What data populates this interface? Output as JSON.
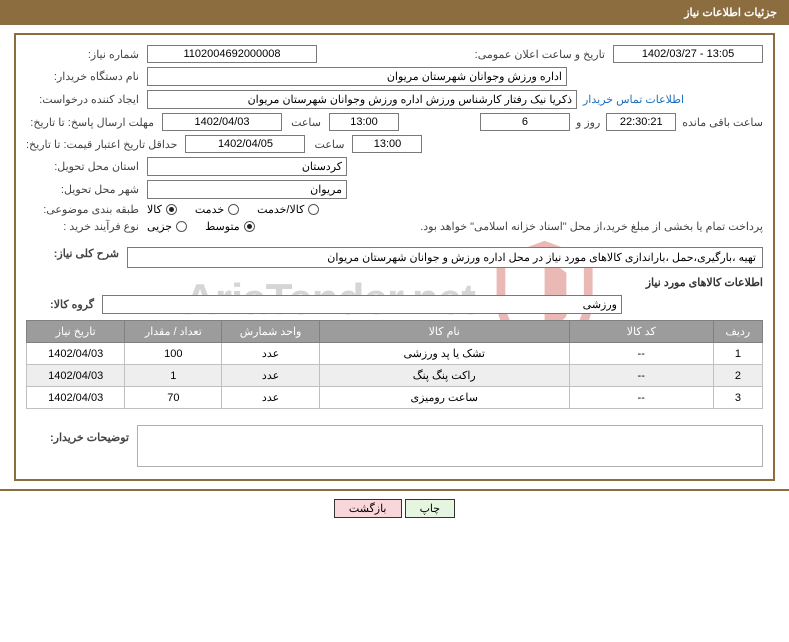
{
  "header": {
    "title": "جزئیات اطلاعات نیاز"
  },
  "labels": {
    "need_no": "شماره نیاز:",
    "announce": "تاریخ و ساعت اعلان عمومی:",
    "buyer": "نام دستگاه خریدار:",
    "requester": "ایجاد کننده درخواست:",
    "respond_until": "مهلت ارسال پاسخ: تا تاریخ:",
    "time": "ساعت",
    "days_and": "روز و",
    "remaining": "ساعت باقی مانده",
    "valid_until": "حداقل تاریخ اعتبار قیمت: تا تاریخ:",
    "province": "استان محل تحویل:",
    "city": "شهر محل تحویل:",
    "category": "طبقه بندی موضوعی:",
    "process": "نوع فرآیند خرید :",
    "buyer_contact": "اطلاعات تماس خریدار",
    "overall": "شرح کلی نیاز:",
    "items_section": "اطلاعات کالاهای مورد نیاز",
    "group": "گروه کالا:",
    "remarks": "توضیحات خریدار:",
    "print": "چاپ",
    "back": "بازگشت"
  },
  "values": {
    "need_no": "1102004692000008",
    "announce": "13:05 - 1402/03/27",
    "buyer": "اداره ورزش وجوانان شهرستان مریوان",
    "requester": "ذکریا نیک رفتار کارشناس ورزش اداره ورزش وجوانان شهرستان مریوان",
    "respond_date": "1402/04/03",
    "respond_time": "13:00",
    "days_left": "6",
    "countdown": "22:30:21",
    "valid_date": "1402/04/05",
    "valid_time": "13:00",
    "province": "کردستان",
    "city": "مریوان",
    "overall": "تهیه ،بارگیری،حمل ،باراندازی کالاهای مورد نیاز در محل اداره ورزش و جوانان شهرستان مریوان",
    "group": "ورزشی",
    "pay_note": "پرداخت تمام یا بخشی از مبلغ خرید،از محل \"اسناد خزانه اسلامی\" خواهد بود."
  },
  "category_opts": {
    "o1": "کالا",
    "o2": "خدمت",
    "o3": "کالا/خدمت"
  },
  "process_opts": {
    "o1": "جزیی",
    "o2": "متوسط"
  },
  "radio_state": {
    "category_selected": "o1",
    "process_selected": "o2"
  },
  "table": {
    "headers": {
      "row": "ردیف",
      "code": "کد کالا",
      "name": "نام کالا",
      "unit": "واحد شمارش",
      "qty": "تعداد / مقدار",
      "date": "تاریخ نیاز"
    },
    "td": {
      "r1c1": "1",
      "r1c2": "--",
      "r1c3": "تشک یا پد ورزشی",
      "r1c4": "عدد",
      "r1c5": "100",
      "r1c6": "1402/04/03",
      "r2c1": "2",
      "r2c2": "--",
      "r2c3": "راکت پنگ پنگ",
      "r2c4": "عدد",
      "r2c5": "1",
      "r2c6": "1402/04/03",
      "r3c1": "3",
      "r3c2": "--",
      "r3c3": "ساعت رومیزی",
      "r3c4": "عدد",
      "r3c5": "70",
      "r3c6": "1402/04/03"
    },
    "col_widths": {
      "row": "50px",
      "code": "150px",
      "name": "260px",
      "unit": "100px",
      "qty": "100px",
      "date": "100px"
    }
  },
  "watermark": {
    "text": "AriaTender.net",
    "shield_stroke": "#c43a2f"
  },
  "colors": {
    "brand": "#8c6d3f",
    "th_bg": "#9c9c9c",
    "link": "#1a6ebd",
    "btn_print": "#e6f5e0",
    "btn_back": "#f8d6da"
  }
}
